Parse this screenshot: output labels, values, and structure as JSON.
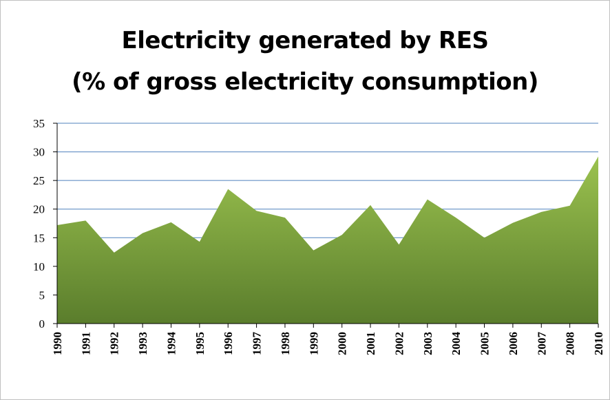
{
  "chart_data": {
    "type": "area",
    "title": "Electricity generated by RES",
    "subtitle": "(% of gross electricity consumption)",
    "xlabel": "",
    "ylabel": "",
    "ylim": [
      0,
      35
    ],
    "yticks": [
      "0",
      "5",
      "10",
      "15",
      "20",
      "25",
      "30",
      "35"
    ],
    "grid": true,
    "legend": "none",
    "categories": [
      "1990",
      "1991",
      "1992",
      "1993",
      "1994",
      "1995",
      "1996",
      "1997",
      "1998",
      "1999",
      "2000",
      "2001",
      "2002",
      "2003",
      "2004",
      "2005",
      "2006",
      "2007",
      "2008",
      "2010"
    ],
    "series": [
      {
        "values": [
          17.2,
          18.0,
          12.4,
          15.8,
          17.7,
          14.3,
          23.5,
          19.7,
          18.5,
          12.8,
          15.5,
          20.7,
          13.8,
          21.7,
          18.5,
          15.0,
          17.6,
          19.5,
          20.6,
          29.2
        ]
      }
    ],
    "colors": {
      "fill_top": "#9bc24f",
      "fill_bottom": "#5a7d2c",
      "gridline": "#4f81bd"
    }
  }
}
